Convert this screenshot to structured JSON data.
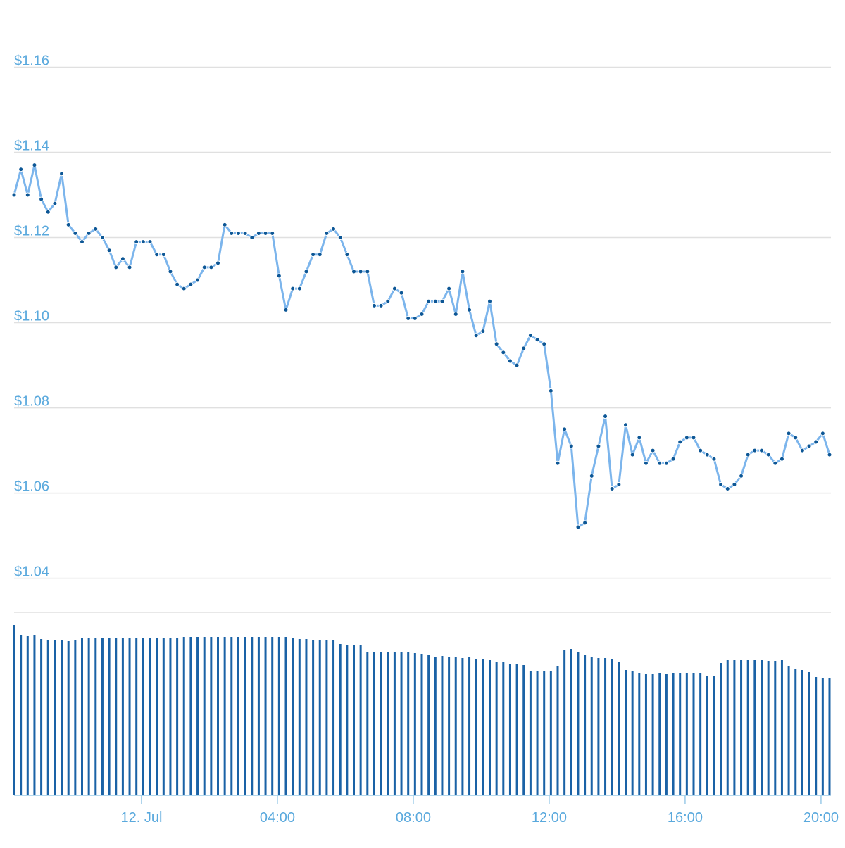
{
  "chart_data": [
    {
      "type": "line",
      "x": [
        -3.75,
        -3.55,
        -3.35,
        -3.15,
        -2.95,
        -2.75,
        -2.55,
        -2.35,
        -2.15,
        -1.95,
        -1.75,
        -1.55,
        -1.35,
        -1.15,
        -0.95,
        -0.75,
        -0.55,
        -0.35,
        -0.15,
        0.05,
        0.25,
        0.45,
        0.65,
        0.85,
        1.05,
        1.25,
        1.45,
        1.65,
        1.85,
        2.05,
        2.25,
        2.45,
        2.65,
        2.85,
        3.05,
        3.25,
        3.45,
        3.65,
        3.85,
        4.05,
        4.25,
        4.45,
        4.65,
        4.85,
        5.05,
        5.25,
        5.45,
        5.65,
        5.85,
        6.05,
        6.25,
        6.45,
        6.65,
        6.85,
        7.05,
        7.25,
        7.45,
        7.65,
        7.85,
        8.05,
        8.25,
        8.45,
        8.65,
        8.85,
        9.05,
        9.25,
        9.45,
        9.65,
        9.85,
        10.05,
        10.25,
        10.45,
        10.65,
        10.85,
        11.05,
        11.25,
        11.45,
        11.65,
        11.85,
        12.05,
        12.25,
        12.45,
        12.65,
        12.85,
        13.05,
        13.25,
        13.45,
        13.65,
        13.85,
        14.05,
        14.25,
        14.45,
        14.65,
        14.85,
        15.05,
        15.25,
        15.45,
        15.65,
        15.85,
        16.05,
        16.25,
        16.45,
        16.65,
        16.85,
        17.05,
        17.25,
        17.45,
        17.65,
        17.85,
        18.05,
        18.25,
        18.45,
        18.65,
        18.85,
        19.05,
        19.25,
        19.45,
        19.65,
        19.85,
        20.05,
        20.25
      ],
      "values": [
        1.13,
        1.136,
        1.13,
        1.137,
        1.129,
        1.126,
        1.128,
        1.135,
        1.123,
        1.121,
        1.119,
        1.121,
        1.122,
        1.12,
        1.117,
        1.113,
        1.115,
        1.113,
        1.119,
        1.119,
        1.119,
        1.116,
        1.116,
        1.112,
        1.109,
        1.108,
        1.109,
        1.11,
        1.113,
        1.113,
        1.114,
        1.123,
        1.121,
        1.121,
        1.121,
        1.12,
        1.121,
        1.121,
        1.121,
        1.111,
        1.103,
        1.108,
        1.108,
        1.112,
        1.116,
        1.116,
        1.121,
        1.122,
        1.12,
        1.116,
        1.112,
        1.112,
        1.112,
        1.104,
        1.104,
        1.105,
        1.108,
        1.107,
        1.101,
        1.101,
        1.102,
        1.105,
        1.105,
        1.105,
        1.108,
        1.102,
        1.112,
        1.103,
        1.097,
        1.098,
        1.105,
        1.095,
        1.093,
        1.091,
        1.09,
        1.094,
        1.097,
        1.096,
        1.095,
        1.084,
        1.067,
        1.075,
        1.071,
        1.052,
        1.053,
        1.064,
        1.071,
        1.078,
        1.061,
        1.062,
        1.076,
        1.069,
        1.073,
        1.067,
        1.07,
        1.067,
        1.067,
        1.068,
        1.072,
        1.073,
        1.073,
        1.07,
        1.069,
        1.068,
        1.062,
        1.061,
        1.062,
        1.064,
        1.069,
        1.07,
        1.07,
        1.069,
        1.067,
        1.068,
        1.074,
        1.073,
        1.07,
        1.071,
        1.072,
        1.074,
        1.069
      ],
      "color": "#7cb5ec",
      "marker_color": "#0d5796",
      "xlim": [
        -3.75,
        20.25
      ],
      "xticks": [
        {
          "value": 0,
          "label": "12. Jul"
        },
        {
          "value": 4,
          "label": "04:00"
        },
        {
          "value": 8,
          "label": "08:00"
        },
        {
          "value": 12,
          "label": "12:00"
        },
        {
          "value": 16,
          "label": "16:00"
        },
        {
          "value": 20,
          "label": "20:00"
        }
      ],
      "ylim": [
        1.032,
        1.17
      ],
      "yticks": [
        {
          "value": 1.04,
          "label": "$1.04"
        },
        {
          "value": 1.06,
          "label": "$1.06"
        },
        {
          "value": 1.08,
          "label": "$1.08"
        },
        {
          "value": 1.1,
          "label": "$1.10"
        },
        {
          "value": 1.12,
          "label": "$1.12"
        },
        {
          "value": 1.14,
          "label": "$1.14"
        },
        {
          "value": 1.16,
          "label": "$1.16"
        }
      ],
      "grid": true
    },
    {
      "type": "bar",
      "x": [
        -3.75,
        -3.55,
        -3.35,
        -3.15,
        -2.95,
        -2.75,
        -2.55,
        -2.35,
        -2.15,
        -1.95,
        -1.75,
        -1.55,
        -1.35,
        -1.15,
        -0.95,
        -0.75,
        -0.55,
        -0.35,
        -0.15,
        0.05,
        0.25,
        0.45,
        0.65,
        0.85,
        1.05,
        1.25,
        1.45,
        1.65,
        1.85,
        2.05,
        2.25,
        2.45,
        2.65,
        2.85,
        3.05,
        3.25,
        3.45,
        3.65,
        3.85,
        4.05,
        4.25,
        4.45,
        4.65,
        4.85,
        5.05,
        5.25,
        5.45,
        5.65,
        5.85,
        6.05,
        6.25,
        6.45,
        6.65,
        6.85,
        7.05,
        7.25,
        7.45,
        7.65,
        7.85,
        8.05,
        8.25,
        8.45,
        8.65,
        8.85,
        9.05,
        9.25,
        9.45,
        9.65,
        9.85,
        10.05,
        10.25,
        10.45,
        10.65,
        10.85,
        11.05,
        11.25,
        11.45,
        11.65,
        11.85,
        12.05,
        12.25,
        12.45,
        12.65,
        12.85,
        13.05,
        13.25,
        13.45,
        13.65,
        13.85,
        14.05,
        14.25,
        14.45,
        14.65,
        14.85,
        15.05,
        15.25,
        15.45,
        15.65,
        15.85,
        16.05,
        16.25,
        16.45,
        16.65,
        16.85,
        17.05,
        17.25,
        17.45,
        17.65,
        17.85,
        18.05,
        18.25,
        18.45,
        18.65,
        18.85,
        19.05,
        19.25,
        19.45,
        19.65,
        19.85,
        20.05,
        20.25
      ],
      "values": [
        242,
        228,
        226,
        227,
        222,
        220,
        220,
        220,
        219,
        221,
        223,
        223,
        223,
        223,
        223,
        223,
        223,
        223,
        223,
        223,
        223,
        223,
        223,
        223,
        223,
        225,
        225,
        225,
        225,
        225,
        225,
        225,
        225,
        225,
        225,
        225,
        225,
        225,
        225,
        225,
        225,
        224,
        222,
        222,
        221,
        221,
        220,
        220,
        215,
        214,
        214,
        214,
        203,
        203,
        203,
        203,
        203,
        204,
        203,
        202,
        201,
        199,
        197,
        198,
        197,
        196,
        195,
        196,
        193,
        193,
        192,
        190,
        190,
        187,
        187,
        185,
        176,
        176,
        176,
        177,
        183,
        207,
        208,
        203,
        199,
        197,
        195,
        195,
        193,
        190,
        178,
        176,
        174,
        172,
        172,
        173,
        172,
        173,
        174,
        174,
        174,
        173,
        170,
        169,
        188,
        192,
        192,
        192,
        192,
        192,
        192,
        191,
        191,
        192,
        184,
        180,
        178,
        175,
        168,
        167,
        167
      ],
      "color": "#1a62a6",
      "ylim": [
        0,
        260
      ]
    }
  ]
}
